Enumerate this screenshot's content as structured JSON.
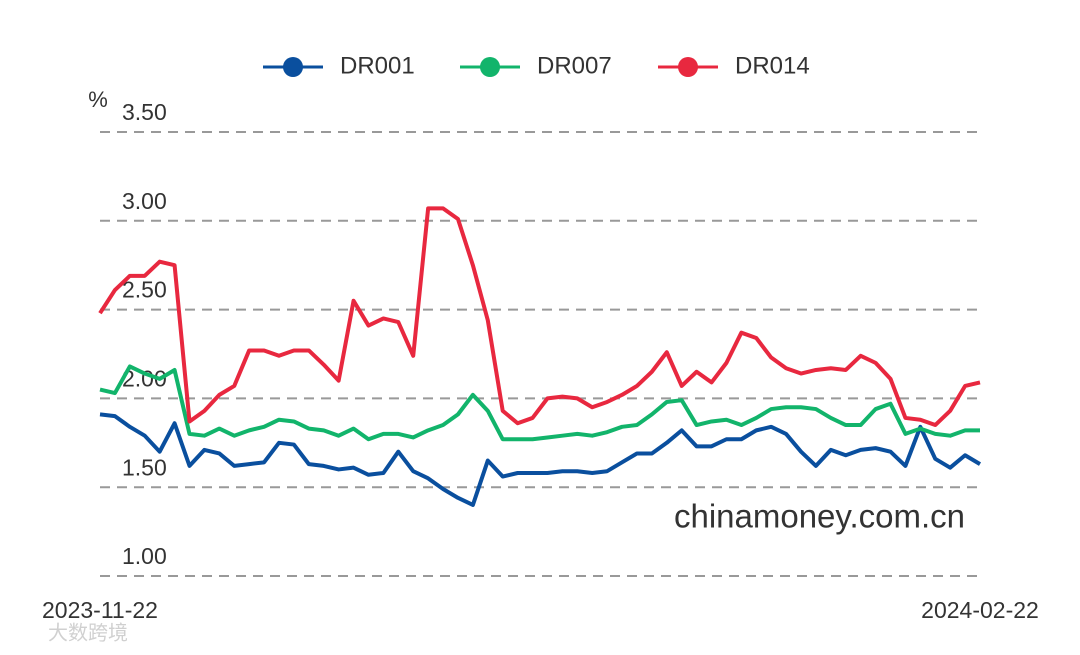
{
  "chart_data": {
    "type": "line",
    "y_label": "%",
    "annotation": "chinamoney.com.cn",
    "watermark": "大数跨境",
    "categories": [
      "2023-11-22",
      null,
      null,
      null,
      null,
      null,
      null,
      null,
      null,
      null,
      null,
      null,
      null,
      null,
      null,
      null,
      null,
      null,
      null,
      null,
      null,
      null,
      null,
      null,
      null,
      null,
      null,
      null,
      null,
      null,
      null,
      null,
      null,
      null,
      null,
      null,
      null,
      null,
      null,
      null,
      null,
      null,
      null,
      null,
      null,
      null,
      null,
      null,
      null,
      null,
      null,
      null,
      null,
      null,
      null,
      null,
      null,
      null,
      null,
      "2024-02-22"
    ],
    "series": [
      {
        "name": "DR001",
        "color": "#0a4f9e",
        "values": [
          1.91,
          1.9,
          1.84,
          1.79,
          1.7,
          1.86,
          1.62,
          1.71,
          1.69,
          1.62,
          1.63,
          1.64,
          1.75,
          1.74,
          1.63,
          1.62,
          1.6,
          1.61,
          1.57,
          1.58,
          1.7,
          1.59,
          1.55,
          1.49,
          1.44,
          1.4,
          1.65,
          1.56,
          1.58,
          1.58,
          1.58,
          1.59,
          1.59,
          1.58,
          1.59,
          1.64,
          1.69,
          1.69,
          1.75,
          1.82,
          1.73,
          1.73,
          1.77,
          1.77,
          1.82,
          1.84,
          1.8,
          1.7,
          1.62,
          1.71,
          1.68,
          1.71,
          1.72,
          1.7,
          1.62,
          1.84,
          1.66,
          1.61,
          1.68,
          1.63
        ]
      },
      {
        "name": "DR007",
        "color": "#12b46b",
        "values": [
          2.05,
          2.03,
          2.18,
          2.14,
          2.11,
          2.16,
          1.8,
          1.79,
          1.83,
          1.79,
          1.82,
          1.84,
          1.88,
          1.87,
          1.83,
          1.82,
          1.79,
          1.83,
          1.77,
          1.8,
          1.8,
          1.78,
          1.82,
          1.85,
          1.91,
          2.02,
          1.93,
          1.77,
          1.77,
          1.77,
          1.78,
          1.79,
          1.8,
          1.79,
          1.81,
          1.84,
          1.85,
          1.91,
          1.98,
          1.99,
          1.85,
          1.87,
          1.88,
          1.85,
          1.89,
          1.94,
          1.95,
          1.95,
          1.94,
          1.89,
          1.85,
          1.85,
          1.94,
          1.97,
          1.8,
          1.83,
          1.8,
          1.79,
          1.82,
          1.82
        ]
      },
      {
        "name": "DR014",
        "color": "#e8283f",
        "values": [
          2.48,
          2.61,
          2.69,
          2.69,
          2.77,
          2.75,
          1.87,
          1.93,
          2.02,
          2.07,
          2.27,
          2.27,
          2.24,
          2.27,
          2.27,
          2.19,
          2.1,
          2.55,
          2.41,
          2.45,
          2.43,
          2.24,
          3.07,
          3.07,
          3.01,
          2.75,
          2.44,
          1.93,
          1.86,
          1.89,
          2.0,
          2.01,
          2.0,
          1.95,
          1.98,
          2.02,
          2.07,
          2.15,
          2.26,
          2.07,
          2.15,
          2.09,
          2.2,
          2.37,
          2.34,
          2.23,
          2.17,
          2.14,
          2.16,
          2.17,
          2.16,
          2.24,
          2.2,
          2.11,
          1.89,
          1.88,
          1.85,
          1.93,
          2.07,
          2.09
        ]
      }
    ],
    "ylim": [
      1,
      3.5
    ],
    "yticks": [
      {
        "value": 1,
        "label": "1.00"
      },
      {
        "value": 1.5,
        "label": "1.50"
      },
      {
        "value": 2,
        "label": "2.00"
      },
      {
        "value": 2.5,
        "label": "2.50"
      },
      {
        "value": 3,
        "label": "3.00"
      },
      {
        "value": 3.5,
        "label": "3.50"
      }
    ],
    "grid": true
  }
}
